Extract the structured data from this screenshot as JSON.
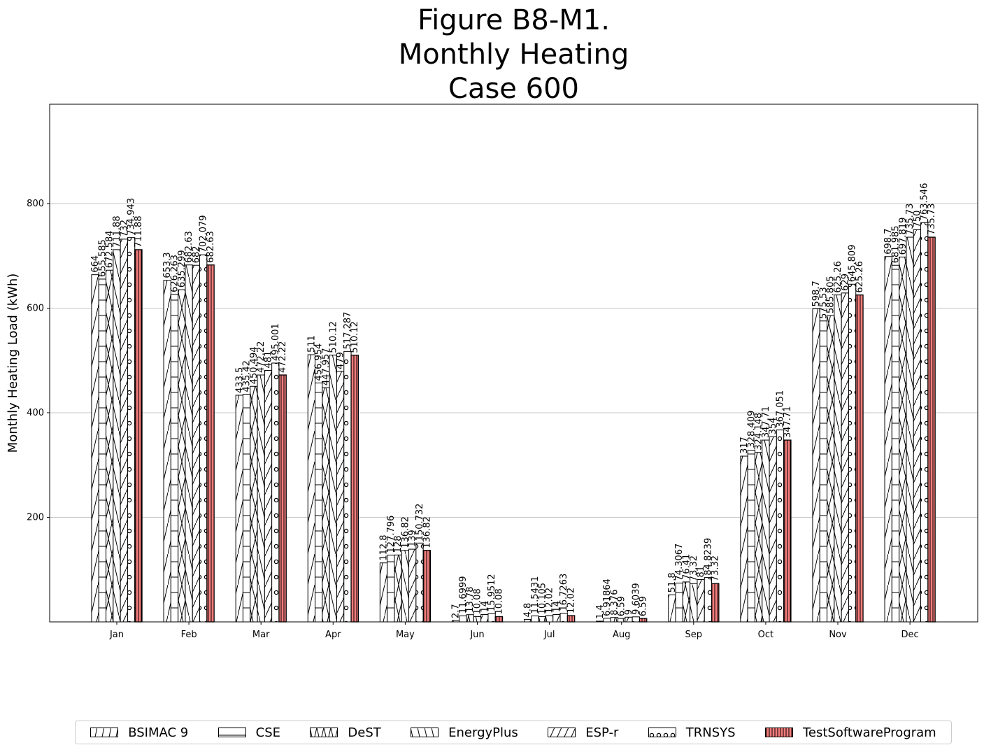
{
  "chart_data": {
    "type": "bar",
    "title": [
      "Figure B8-M1.",
      "Monthly Heating",
      "Case 600"
    ],
    "xlabel": "",
    "ylabel": "Monthly Heating Load (kWh)",
    "ylim": [
      0,
      990
    ],
    "yticks": [
      200,
      400,
      600,
      800
    ],
    "grid": "y",
    "legend_position": "bottom",
    "categories": [
      "Jan",
      "Feb",
      "Mar",
      "Apr",
      "May",
      "Jun",
      "Jul",
      "Aug",
      "Sep",
      "Oct",
      "Nov",
      "Dec"
    ],
    "series": [
      {
        "name": "BSIMAC 9",
        "pattern": "diag-up",
        "color": "#ffffff",
        "values": [
          664,
          653.3,
          433.5,
          511,
          112.8,
          2.7,
          4.8,
          1.4,
          51.8,
          317,
          598.7,
          698.7
        ],
        "labels": [
          "664",
          "653.3",
          "433.5",
          "511",
          "112.8",
          "2.7",
          "4.8",
          "1.4",
          "51.8",
          "317",
          "598.7",
          "698.7"
        ]
      },
      {
        "name": "CSE",
        "pattern": "horizontal",
        "color": "#ffffff",
        "values": [
          655.585,
          626.263,
          435.42,
          456.954,
          127.796,
          11.6999,
          11.5431,
          6.91864,
          74.3067,
          328.409,
          575.53,
          681.985
        ],
        "labels": [
          "655.585",
          "626.263",
          "435.42",
          "456.954",
          "127.796",
          "11.6999",
          "11.5431",
          "6.91864",
          "74.3067",
          "328.409",
          "575.53",
          "681.985"
        ]
      },
      {
        "name": "DeST",
        "pattern": "cross",
        "color": "#ffffff",
        "values": [
          672.584,
          635.299,
          450.494,
          447.957,
          128,
          13.78,
          10.105,
          8.376,
          76.41,
          324.148,
          585.805,
          697.819
        ],
        "labels": [
          "672.584",
          "635.299",
          "450.494",
          "447.957",
          "128",
          "13.78",
          "10.105",
          "8.376",
          "76.41",
          "324.148",
          "585.805",
          "697.819"
        ]
      },
      {
        "name": "EnergyPlus",
        "pattern": "diag-down",
        "color": "#ffffff",
        "values": [
          711.88,
          682.63,
          472.22,
          510.12,
          136.82,
          10.08,
          12.02,
          6.59,
          73.32,
          347.71,
          625.26,
          735.73
        ],
        "labels": [
          "711.88",
          "682.63",
          "472.22",
          "510.12",
          "136.82",
          "10.08",
          "12.02",
          "6.59",
          "73.32",
          "347.71",
          "625.26",
          "735.73"
        ]
      },
      {
        "name": "ESP-r",
        "pattern": "diag-dense",
        "color": "#ffffff",
        "values": [
          732,
          682,
          481,
          479,
          139,
          14,
          14,
          9,
          81,
          354,
          629,
          750
        ],
        "labels": [
          "732",
          "682",
          "481",
          "479",
          "139",
          "14",
          "14",
          "9",
          "81",
          "354",
          "629",
          "750"
        ]
      },
      {
        "name": "TRNSYS",
        "pattern": "circles",
        "color": "#ffffff",
        "values": [
          734.943,
          702.079,
          495.001,
          517.287,
          150.732,
          15.9512,
          16.7263,
          9.6039,
          84.8239,
          367.051,
          645.809,
          763.546
        ],
        "labels": [
          "734.943",
          "702.079",
          "495.001",
          "517.287",
          "150.732",
          "15.9512",
          "16.7263",
          "9.6039",
          "84.8239",
          "367.051",
          "645.809",
          "763.546"
        ]
      },
      {
        "name": "TestSoftwareProgram",
        "pattern": "vertical",
        "color": "#f47c7c",
        "values": [
          711.88,
          682.63,
          472.22,
          510.12,
          136.82,
          10.08,
          12.02,
          6.59,
          73.32,
          347.71,
          625.26,
          735.73
        ],
        "labels": [
          "711.88",
          "682.63",
          "472.22",
          "510.12",
          "136.82",
          "10.08",
          "12.02",
          "6.59",
          "73.32",
          "347.71",
          "625.26",
          "735.73"
        ]
      }
    ]
  }
}
